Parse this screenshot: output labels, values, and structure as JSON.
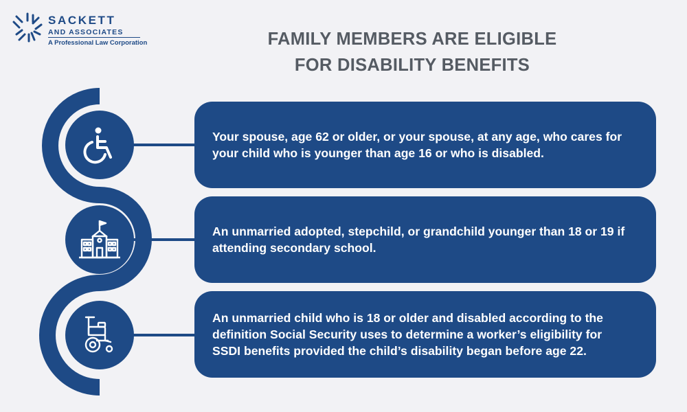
{
  "logo": {
    "name": "SACKETT",
    "subtitle": "AND ASSOCIATES",
    "tagline": "A Professional Law Corporation"
  },
  "title": {
    "line1": "FAMILY MEMBERS ARE ELIGIBLE",
    "line2": "FOR DISABILITY BENEFITS"
  },
  "colors": {
    "brand": "#1e4a86",
    "background": "#f2f2f5",
    "title": "#555b63",
    "text": "#ffffff"
  },
  "items": [
    {
      "icon": "wheelchair-icon",
      "text": "Your spouse, age 62 or older, or your spouse, at any age, who cares for your child who is younger than age 16 or who is disabled."
    },
    {
      "icon": "school-building-icon",
      "text": "An unmarried adopted, stepchild, or grandchild younger than 18 or 19 if attending secondary school."
    },
    {
      "icon": "power-wheelchair-icon",
      "text": "An unmarried child who is 18 or older and disabled according to the definition Social Security uses to determine a worker’s eligibility for SSDI benefits provided the child’s disability began before age 22."
    }
  ]
}
